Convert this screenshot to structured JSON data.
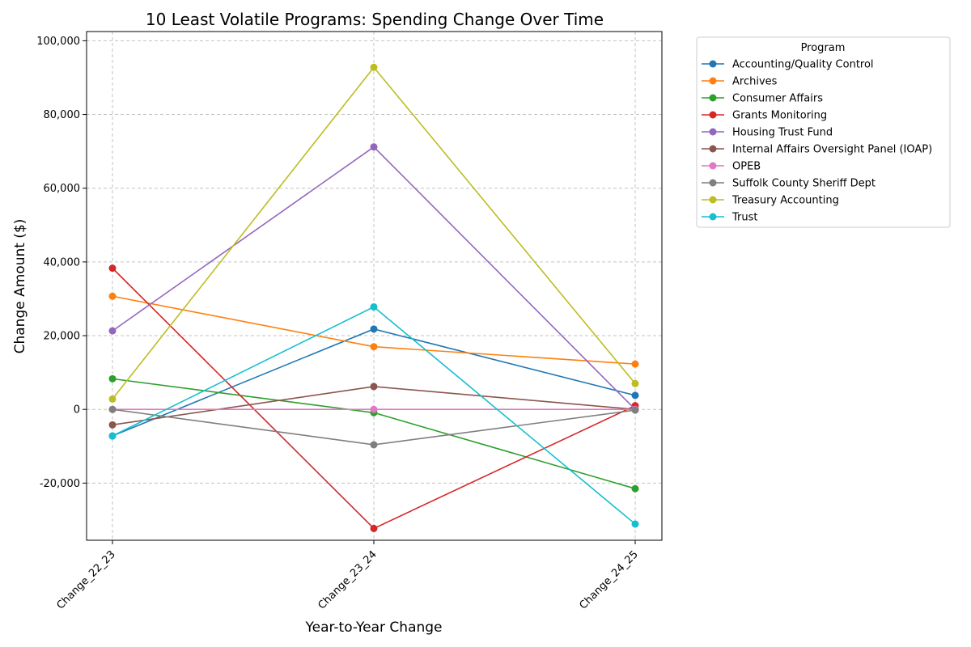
{
  "chart_data": {
    "type": "line",
    "title": "10 Least Volatile Programs: Spending Change Over Time",
    "xlabel": "Year-to-Year Change",
    "ylabel": "Change Amount ($)",
    "categories": [
      "Change_22_23",
      "Change_23_24",
      "Change_24_25"
    ],
    "ylim": [
      -35500,
      102500
    ],
    "yticks": [
      -20000,
      0,
      20000,
      40000,
      60000,
      80000,
      100000
    ],
    "ytick_labels": [
      "-20,000",
      "0",
      "20,000",
      "40,000",
      "60,000",
      "80,000",
      "100,000"
    ],
    "grid": true,
    "legend": {
      "title": "Program",
      "placement": "outside-top-right"
    },
    "series": [
      {
        "name": "Accounting/Quality Control",
        "color": "#1f77b4",
        "values": [
          -7200,
          21800,
          3800
        ]
      },
      {
        "name": "Archives",
        "color": "#ff7f0e",
        "values": [
          30700,
          17000,
          12300
        ]
      },
      {
        "name": "Consumer Affairs",
        "color": "#2ca02c",
        "values": [
          8300,
          -900,
          -21500
        ]
      },
      {
        "name": "Grants Monitoring",
        "color": "#d62728",
        "values": [
          38300,
          -32300,
          1000
        ]
      },
      {
        "name": "Housing Trust Fund",
        "color": "#9467bd",
        "values": [
          21300,
          71200,
          0
        ]
      },
      {
        "name": "Internal Affairs Oversight Panel (IOAP)",
        "color": "#8c564b",
        "values": [
          -4200,
          6200,
          0
        ]
      },
      {
        "name": "OPEB",
        "color": "#e377c2",
        "values": [
          0,
          0,
          0
        ]
      },
      {
        "name": "Suffolk County Sheriff Dept",
        "color": "#7f7f7f",
        "values": [
          0,
          -9600,
          -200
        ]
      },
      {
        "name": "Treasury Accounting",
        "color": "#bcbd22",
        "values": [
          2800,
          92800,
          7000
        ]
      },
      {
        "name": "Trust",
        "color": "#17becf",
        "values": [
          -7200,
          27800,
          -31100
        ]
      }
    ]
  }
}
